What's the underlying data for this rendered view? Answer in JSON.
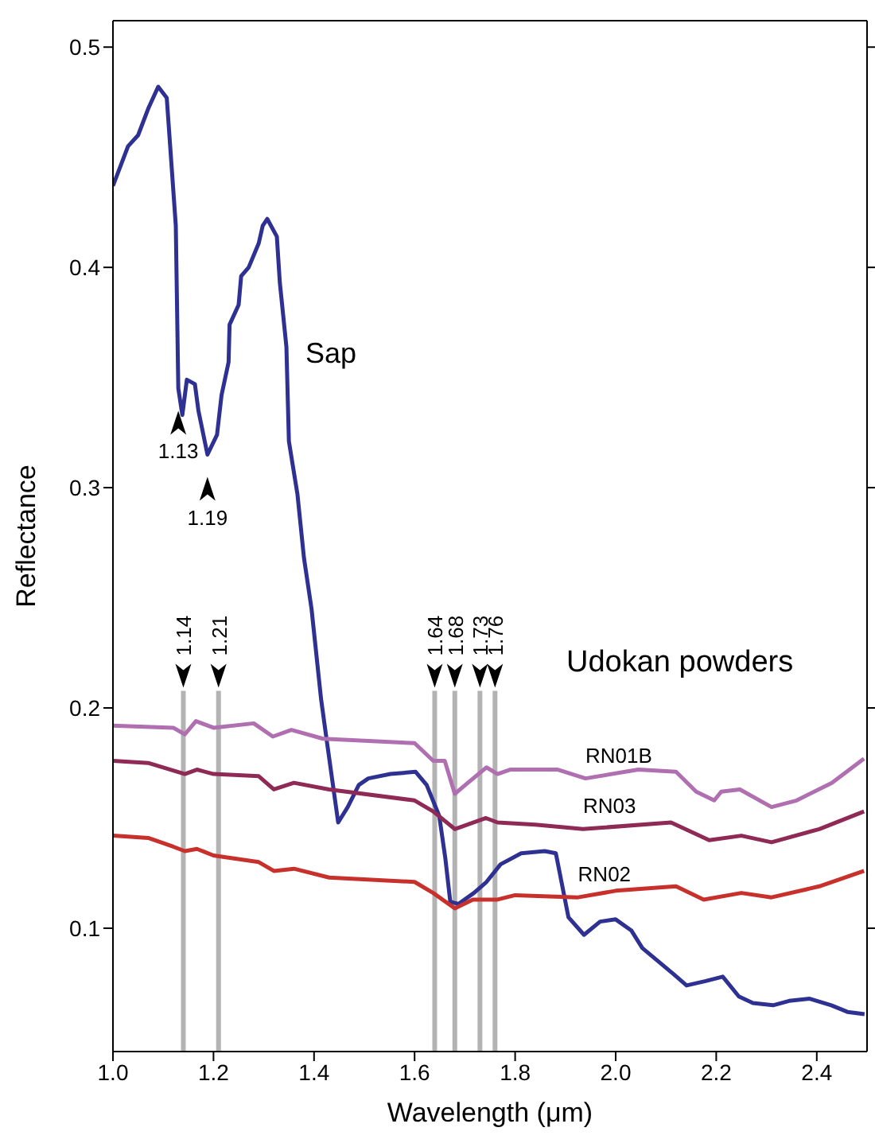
{
  "chart_data": {
    "type": "line",
    "xlabel": "Wavelength (μm)",
    "ylabel": "Reflectance",
    "xlim": [
      1.0,
      2.5
    ],
    "xticks": [
      {
        "value": 1.0,
        "label": "1.0"
      },
      1.2,
      1.4,
      1.6,
      1.8,
      {
        "value": 2.0,
        "label": "2.0"
      },
      2.2,
      2.4
    ],
    "ylim": [
      0.044,
      0.512
    ],
    "yticks": [
      0.1,
      0.2,
      0.3,
      0.4,
      0.5
    ],
    "grid": false,
    "legend": false,
    "marker": "none",
    "line_style": "solid",
    "series": [
      {
        "name": "Sap",
        "color": "#2e3192",
        "x": [
          1.0,
          1.03,
          1.05,
          1.07,
          1.09,
          1.107,
          1.125,
          1.13,
          1.138,
          1.147,
          1.163,
          1.17,
          1.188,
          1.207,
          1.216,
          1.23,
          1.232,
          1.25,
          1.255,
          1.27,
          1.29,
          1.298,
          1.307,
          1.326,
          1.332,
          1.345,
          1.35,
          1.367,
          1.38,
          1.395,
          1.414,
          1.426,
          1.448,
          1.467,
          1.489,
          1.508,
          1.552,
          1.602,
          1.624,
          1.649,
          1.661,
          1.671,
          1.687,
          1.718,
          1.743,
          1.771,
          1.812,
          1.859,
          1.881,
          1.906,
          1.937,
          1.969,
          2.0,
          2.031,
          2.053,
          2.116,
          2.141,
          2.179,
          2.213,
          2.245,
          2.273,
          2.313,
          2.345,
          2.386,
          2.429,
          2.461,
          2.495
        ],
        "values": [
          0.437,
          0.455,
          0.46,
          0.472,
          0.482,
          0.477,
          0.419,
          0.345,
          0.333,
          0.349,
          0.347,
          0.335,
          0.315,
          0.324,
          0.342,
          0.357,
          0.374,
          0.383,
          0.396,
          0.4,
          0.411,
          0.419,
          0.422,
          0.414,
          0.393,
          0.364,
          0.321,
          0.297,
          0.268,
          0.245,
          0.204,
          0.184,
          0.148,
          0.155,
          0.165,
          0.168,
          0.17,
          0.171,
          0.165,
          0.151,
          0.132,
          0.112,
          0.111,
          0.116,
          0.121,
          0.129,
          0.134,
          0.135,
          0.134,
          0.105,
          0.097,
          0.103,
          0.104,
          0.099,
          0.091,
          0.079,
          0.074,
          0.076,
          0.078,
          0.069,
          0.066,
          0.065,
          0.067,
          0.068,
          0.065,
          0.062,
          0.061
        ]
      },
      {
        "name": "RN01B",
        "color": "#b06fb0",
        "x": [
          1.0,
          1.12,
          1.143,
          1.165,
          1.2,
          1.28,
          1.318,
          1.355,
          1.418,
          1.6,
          1.637,
          1.66,
          1.68,
          1.706,
          1.743,
          1.765,
          1.79,
          1.885,
          1.94,
          2.045,
          2.12,
          2.16,
          2.196,
          2.21,
          2.247,
          2.31,
          2.36,
          2.43,
          2.494
        ],
        "values": [
          0.192,
          0.191,
          0.188,
          0.194,
          0.191,
          0.193,
          0.187,
          0.19,
          0.186,
          0.184,
          0.176,
          0.176,
          0.161,
          0.166,
          0.173,
          0.17,
          0.172,
          0.172,
          0.168,
          0.172,
          0.171,
          0.162,
          0.158,
          0.162,
          0.163,
          0.155,
          0.158,
          0.166,
          0.177
        ]
      },
      {
        "name": "RN03",
        "color": "#8e2a55",
        "x": [
          1.0,
          1.07,
          1.143,
          1.167,
          1.2,
          1.29,
          1.32,
          1.36,
          1.43,
          1.6,
          1.637,
          1.68,
          1.742,
          1.765,
          1.84,
          1.935,
          2.11,
          2.186,
          2.25,
          2.31,
          2.405,
          2.494
        ],
        "values": [
          0.176,
          0.175,
          0.17,
          0.172,
          0.17,
          0.169,
          0.163,
          0.166,
          0.163,
          0.158,
          0.153,
          0.145,
          0.15,
          0.148,
          0.147,
          0.145,
          0.148,
          0.14,
          0.142,
          0.139,
          0.145,
          0.153
        ]
      },
      {
        "name": "RN02",
        "color": "#c8302b",
        "x": [
          1.0,
          1.07,
          1.12,
          1.143,
          1.167,
          1.2,
          1.29,
          1.32,
          1.36,
          1.43,
          1.6,
          1.637,
          1.68,
          1.716,
          1.765,
          1.8,
          1.925,
          2.0,
          2.12,
          2.175,
          2.25,
          2.31,
          2.405,
          2.494
        ],
        "values": [
          0.142,
          0.141,
          0.137,
          0.135,
          0.136,
          0.133,
          0.13,
          0.126,
          0.127,
          0.123,
          0.121,
          0.116,
          0.109,
          0.113,
          0.113,
          0.115,
          0.114,
          0.117,
          0.119,
          0.113,
          0.116,
          0.114,
          0.119,
          0.126
        ]
      }
    ],
    "ref_lines": [
      {
        "axis": "x",
        "value": 1.14,
        "label": "1.14",
        "color": "#b3b3b3"
      },
      {
        "axis": "x",
        "value": 1.21,
        "label": "1.21",
        "color": "#b3b3b3"
      },
      {
        "axis": "x",
        "value": 1.64,
        "label": "1.64",
        "color": "#b3b3b3"
      },
      {
        "axis": "x",
        "value": 1.68,
        "label": "1.68",
        "color": "#b3b3b3"
      },
      {
        "axis": "x",
        "value": 1.73,
        "label": "1.73",
        "color": "#b3b3b3"
      },
      {
        "axis": "x",
        "value": 1.76,
        "label": "1.76",
        "color": "#b3b3b3"
      }
    ],
    "annotations": [
      {
        "text": "1.13",
        "x": 1.13,
        "y": 0.345
      },
      {
        "text": "1.19",
        "x": 1.188,
        "y": 0.315
      },
      "Udokan powders"
    ]
  }
}
